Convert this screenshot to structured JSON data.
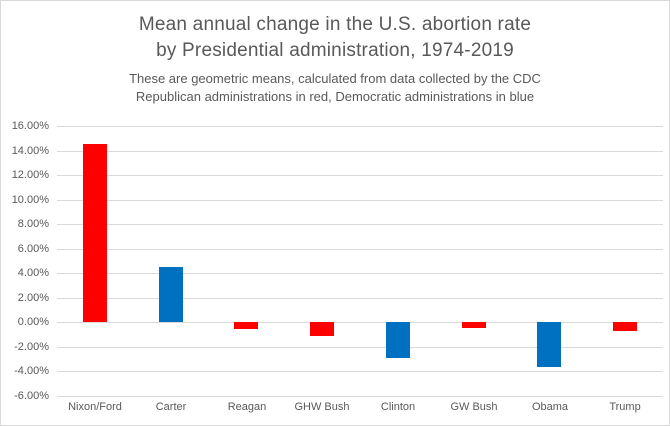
{
  "title": {
    "line1": "Mean annual change in the U.S. abortion rate",
    "line2": "by Presidential administration, 1974-2019"
  },
  "subtitle": {
    "line1": "These are geometric means, calculated from data collected by the CDC",
    "line2": "Republican administrations in red, Democratic administrations in blue"
  },
  "colors": {
    "republican_red": "#ff0000",
    "democrat_blue": "#0070c0",
    "gridline": "#d9d9d9",
    "text_gray": "#595959",
    "frame_border": "#d9d9d9",
    "background": "#ffffff"
  },
  "chart_data": {
    "type": "bar",
    "title": "Mean annual change in the U.S. abortion rate by Presidential administration, 1974-2019",
    "subtitle": "These are geometric means, calculated from data collected by the CDC. Republican administrations in red, Democratic administrations in blue",
    "categories": [
      "Nixon/Ford",
      "Carter",
      "Reagan",
      "GHW Bush",
      "Clinton",
      "GW Bush",
      "Obama",
      "Trump"
    ],
    "values": [
      14.5,
      4.5,
      -0.6,
      -1.1,
      -2.9,
      -0.5,
      -3.7,
      -0.7
    ],
    "parties": [
      "Republican",
      "Democratic",
      "Republican",
      "Republican",
      "Democratic",
      "Republican",
      "Democratic",
      "Republican"
    ],
    "bar_colors": [
      "#ff0000",
      "#0070c0",
      "#ff0000",
      "#ff0000",
      "#0070c0",
      "#ff0000",
      "#0070c0",
      "#ff0000"
    ],
    "unit": "%",
    "xlabel": "",
    "ylabel": "",
    "ylim": [
      -6,
      16
    ],
    "yticks": [
      16,
      14,
      12,
      10,
      8,
      6,
      4,
      2,
      0,
      -2,
      -4,
      -6
    ],
    "ytick_labels": [
      "16.00%",
      "14.00%",
      "12.00%",
      "10.00%",
      "8.00%",
      "6.00%",
      "4.00%",
      "2.00%",
      "0.00%",
      "-2.00%",
      "-4.00%",
      "-6.00%"
    ],
    "grid": true,
    "legend": "none"
  }
}
